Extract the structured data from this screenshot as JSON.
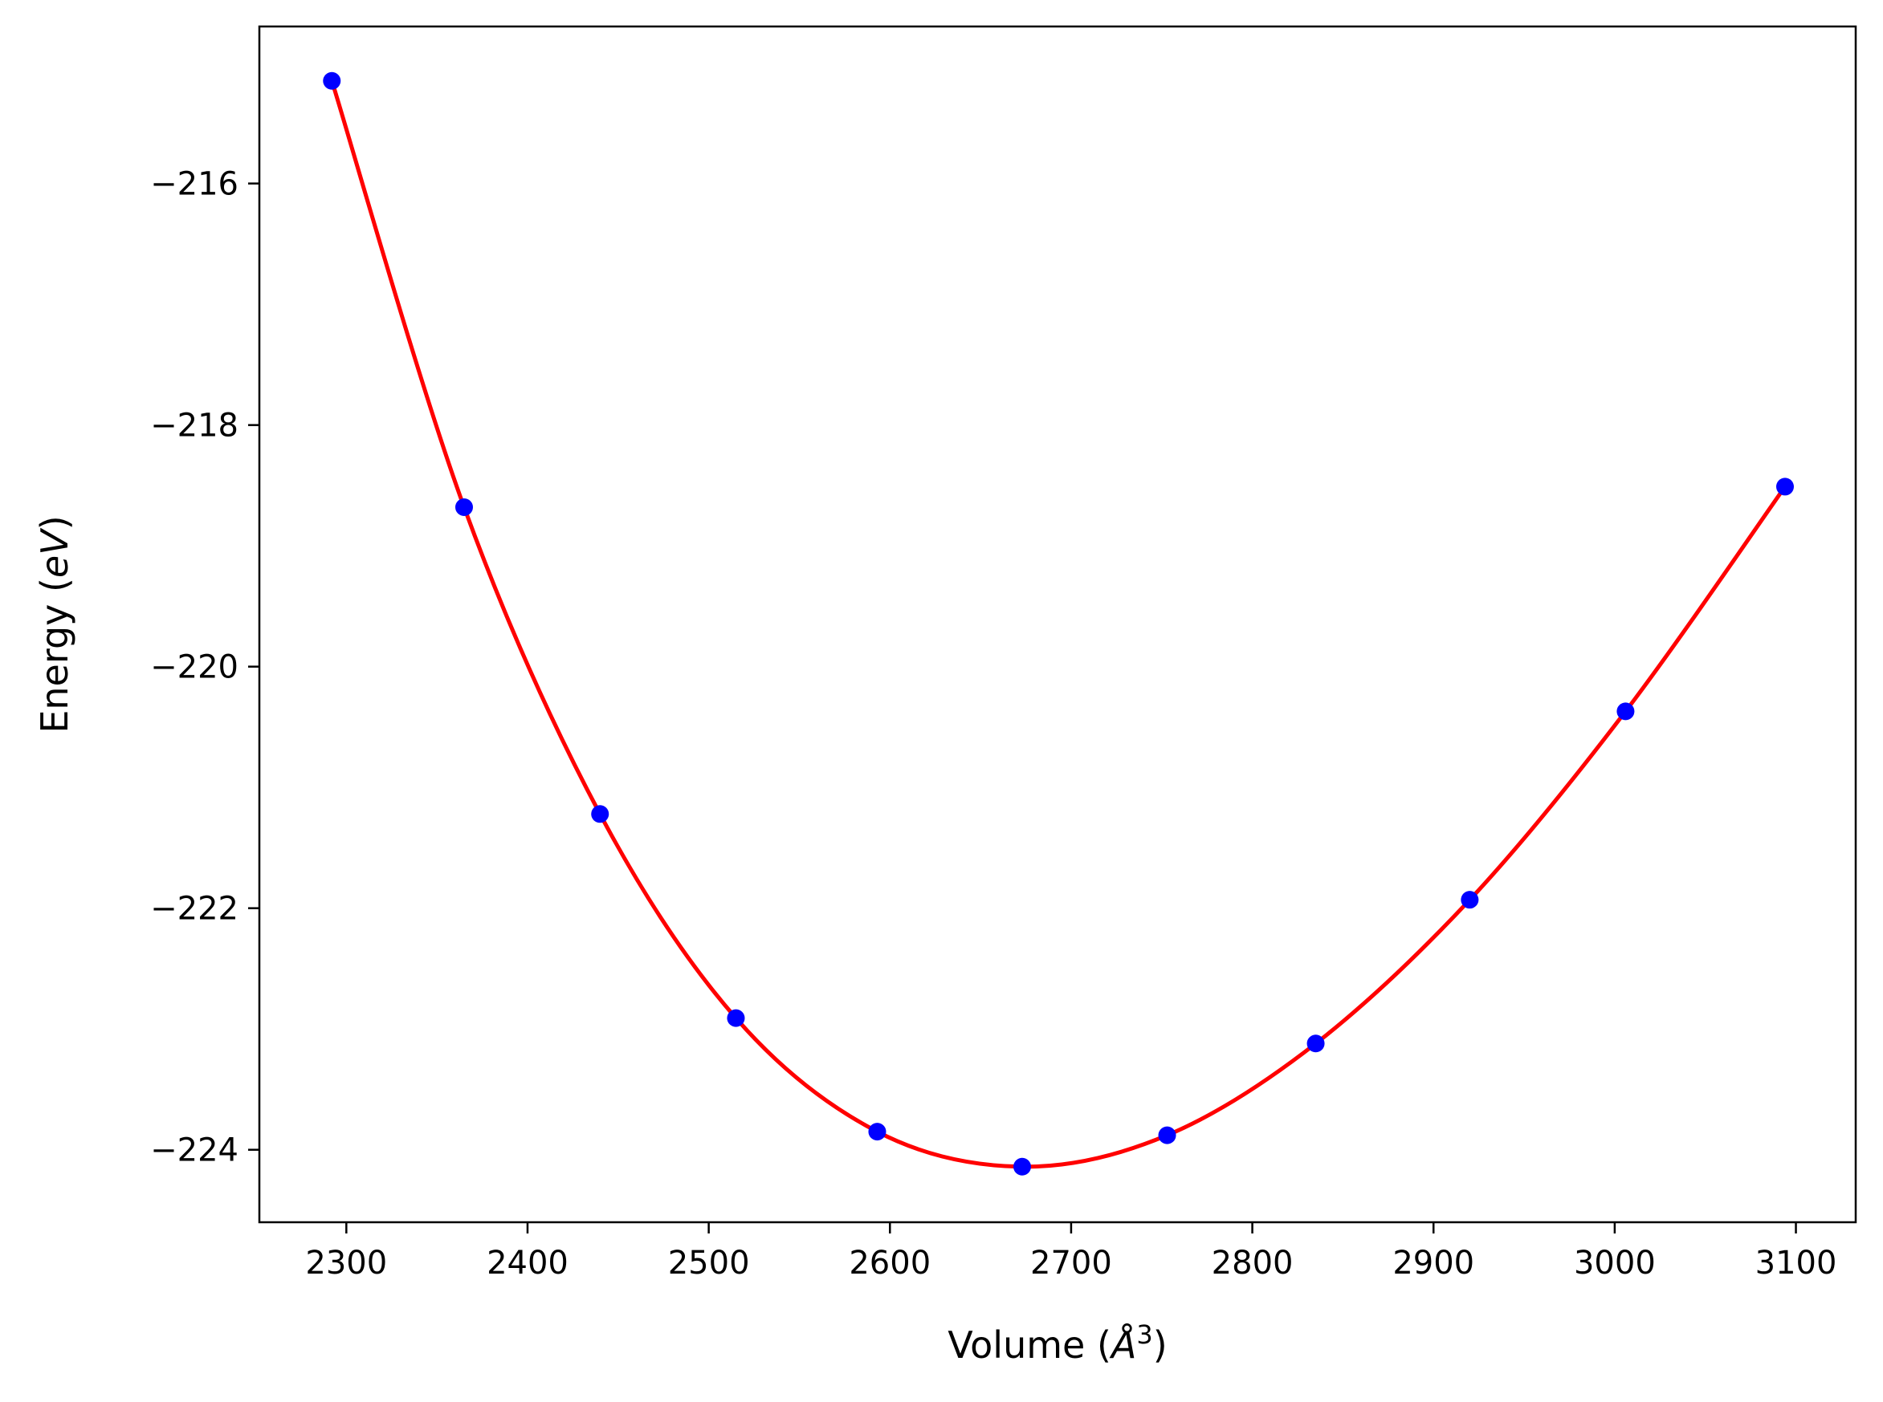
{
  "chart_data": {
    "type": "scatter",
    "title": "",
    "xlabel": "Volume",
    "xlabel_unit": "Å",
    "xlabel_unit_exponent": "3",
    "ylabel": "Energy",
    "ylabel_unit": "eV",
    "xlim": [
      2252,
      3133
    ],
    "ylim": [
      -224.6,
      -214.7
    ],
    "xticks": [
      2300,
      2400,
      2500,
      2600,
      2700,
      2800,
      2900,
      3000,
      3100
    ],
    "xtick_labels": [
      "2300",
      "2400",
      "2500",
      "2600",
      "2700",
      "2800",
      "2900",
      "3000",
      "3100"
    ],
    "yticks": [
      -216,
      -218,
      -220,
      -222,
      -224
    ],
    "ytick_labels": [
      "−216",
      "−218",
      "−220",
      "−222",
      "−224"
    ],
    "grid": false,
    "series": [
      {
        "kind": "points",
        "color": "#0000ff",
        "x": [
          2292,
          2365,
          2440,
          2515,
          2593,
          2673,
          2753,
          2835,
          2920,
          3006,
          3094
        ],
        "y": [
          -215.15,
          -218.68,
          -221.22,
          -222.91,
          -223.85,
          -224.14,
          -223.88,
          -223.12,
          -221.93,
          -220.37,
          -218.51
        ]
      },
      {
        "kind": "fit-line",
        "color": "#ff0000",
        "x": [
          2292,
          2365,
          2440,
          2515,
          2593,
          2673,
          2753,
          2835,
          2920,
          3006,
          3094
        ],
        "y": [
          -215.15,
          -218.68,
          -221.22,
          -222.91,
          -223.85,
          -224.14,
          -223.88,
          -223.12,
          -221.93,
          -220.37,
          -218.51
        ]
      }
    ]
  }
}
